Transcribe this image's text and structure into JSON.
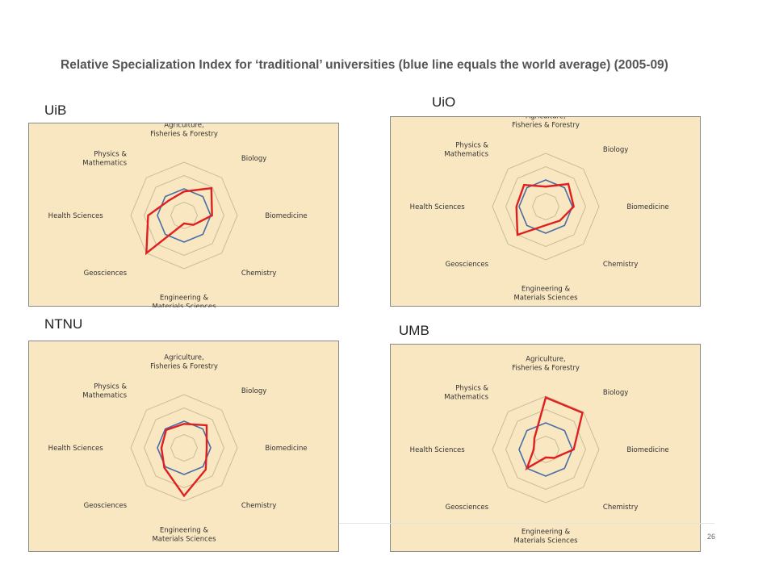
{
  "slide": {
    "title": "Relative Specialization Index for ‘traditional’ universities (blue line equals the world average) (2005-09)",
    "page_number": "26"
  },
  "colors": {
    "panel_bg": "#f9e7c1",
    "ring": "#c9bb99",
    "world_average": "#4a6ea8",
    "university": "#e02020"
  },
  "chart_data": [
    {
      "type": "radar",
      "title": "UiB",
      "axes": [
        "Agriculture,\nFisheries & Forestry",
        "Biology",
        "Biomedicine",
        "Chemistry",
        "Engineering &\nMaterials Sciences",
        "Geosciences",
        "Health Sciences",
        "Physics &\nMathematics"
      ],
      "rings": [
        0.5,
        1.0,
        1.5,
        2.0
      ],
      "r_max": 2.0,
      "grid": true,
      "series": [
        {
          "values": [
            1.0,
            1.0,
            1.0,
            1.0,
            1.0,
            1.0,
            1.0,
            1.0
          ]
        },
        {
          "values": [
            0.9,
            1.45,
            1.05,
            0.5,
            0.3,
            2.0,
            1.35,
            0.8
          ]
        }
      ]
    },
    {
      "type": "radar",
      "title": "UiO",
      "axes": [
        "Agriculture,\nFisheries & Forestry",
        "Biology",
        "Biomedicine",
        "Chemistry",
        "Engineering &\nMaterials Sciences",
        "Geosciences",
        "Health Sciences",
        "Physics &\nMathematics"
      ],
      "rings": [
        0.5,
        1.0,
        1.5,
        2.0
      ],
      "r_max": 2.0,
      "grid": true,
      "series": [
        {
          "values": [
            1.0,
            1.0,
            1.0,
            1.0,
            1.0,
            1.0,
            1.0,
            1.0
          ]
        },
        {
          "values": [
            0.75,
            1.2,
            1.05,
            0.75,
            0.7,
            1.5,
            1.1,
            1.15
          ]
        }
      ]
    },
    {
      "type": "radar",
      "title": "NTNU",
      "axes": [
        "Agriculture,\nFisheries & Forestry",
        "Biology",
        "Biomedicine",
        "Chemistry",
        "Engineering &\nMaterials Sciences",
        "Geosciences",
        "Health Sciences",
        "Physics &\nMathematics"
      ],
      "rings": [
        0.5,
        1.0,
        1.5,
        2.0
      ],
      "r_max": 2.0,
      "grid": true,
      "series": [
        {
          "values": [
            1.0,
            1.0,
            1.0,
            1.0,
            1.0,
            1.0,
            1.0,
            1.0
          ]
        },
        {
          "values": [
            0.9,
            1.2,
            0.85,
            1.15,
            1.8,
            1.05,
            0.85,
            0.95
          ]
        }
      ]
    },
    {
      "type": "radar",
      "title": "UMB",
      "axes": [
        "Agriculture,\nFisheries & Forestry",
        "Biology",
        "Biomedicine",
        "Chemistry",
        "Engineering &\nMaterials Sciences",
        "Geosciences",
        "Health Sciences",
        "Physics &\nMathematics"
      ],
      "rings": [
        0.5,
        1.0,
        1.5,
        2.0
      ],
      "r_max": 2.0,
      "grid": true,
      "series": [
        {
          "values": [
            1.0,
            1.0,
            1.0,
            1.0,
            1.0,
            1.0,
            1.0,
            1.0
          ]
        },
        {
          "values": [
            1.95,
            1.95,
            1.05,
            0.45,
            0.3,
            1.0,
            0.45,
            0.6
          ]
        }
      ]
    }
  ]
}
